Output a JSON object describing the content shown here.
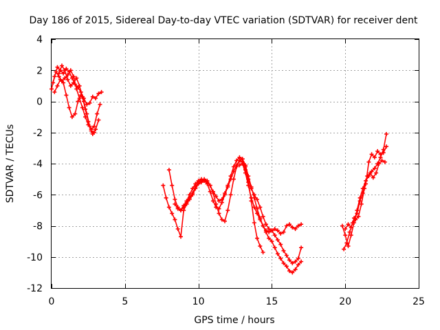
{
  "chart_data": {
    "type": "scatter",
    "title": "Day 186 of 2015, Sidereal Day-to-day VTEC variation (SDTVAR) for receiver dent",
    "xlabel": "GPS time / hours",
    "ylabel": "SDTVAR / TECUs",
    "xlim": [
      0,
      25
    ],
    "ylim": [
      -12,
      4
    ],
    "x_ticks": [
      0,
      5,
      10,
      15,
      20,
      25
    ],
    "y_ticks": [
      -12,
      -10,
      -8,
      -6,
      -4,
      -2,
      0,
      2,
      4
    ],
    "x_tick_labels": [
      "0",
      "5",
      "10",
      "15",
      "20",
      "25"
    ],
    "y_tick_labels": [
      "-12",
      "-10",
      "-8",
      "-6",
      "-4",
      "-2",
      "0",
      "2",
      "4"
    ],
    "grid": true,
    "marker": "plus",
    "color": "#ff0000",
    "series": [
      {
        "x": [
          0.0,
          0.2,
          0.4,
          0.6,
          0.8,
          1.0,
          1.2,
          1.4,
          1.6,
          1.8,
          2.0,
          2.2,
          2.4,
          2.6,
          2.8,
          3.0,
          3.2,
          3.4
        ],
        "y": [
          0.8,
          1.6,
          2.2,
          2.0,
          1.8,
          2.1,
          1.9,
          1.5,
          1.1,
          0.9,
          0.6,
          0.2,
          -0.2,
          -0.1,
          0.3,
          0.2,
          0.5,
          0.6
        ]
      },
      {
        "x": [
          0.1,
          0.3,
          0.5,
          0.7,
          0.9,
          1.1,
          1.3,
          1.5,
          1.7,
          1.9,
          2.1,
          2.3,
          2.5,
          2.7,
          2.9,
          3.1,
          3.3
        ],
        "y": [
          1.2,
          1.9,
          1.6,
          1.3,
          1.5,
          1.7,
          2.0,
          1.6,
          0.8,
          0.2,
          -0.4,
          -1.0,
          -1.5,
          -1.8,
          -1.6,
          -0.8,
          -0.2
        ]
      },
      {
        "x": [
          0.2,
          0.4,
          0.6,
          0.8,
          1.0,
          1.2,
          1.4,
          1.6,
          1.8,
          2.0,
          2.2,
          2.4,
          2.6,
          2.8,
          3.0,
          3.2
        ],
        "y": [
          0.6,
          1.0,
          1.4,
          1.2,
          0.4,
          -0.4,
          -1.0,
          -0.8,
          0.0,
          0.4,
          0.0,
          -0.8,
          -1.6,
          -2.1,
          -1.8,
          -1.2
        ]
      },
      {
        "x": [
          0.5,
          0.7,
          0.9,
          1.1,
          1.3,
          1.5,
          1.7,
          1.9,
          2.1,
          2.3,
          2.5,
          2.7,
          2.9
        ],
        "y": [
          1.8,
          2.3,
          2.0,
          1.4,
          1.0,
          1.2,
          1.5,
          1.0,
          0.3,
          -0.5,
          -1.3,
          -1.9,
          -2.0
        ]
      },
      {
        "x": [
          7.6,
          7.8,
          8.0,
          8.2,
          8.4,
          8.6,
          8.8,
          9.0,
          9.2,
          9.4,
          9.6,
          9.8,
          10.0,
          10.2,
          10.4,
          10.6,
          10.8,
          11.0,
          11.2,
          11.4,
          11.6,
          11.8,
          12.0,
          12.2,
          12.4,
          12.6,
          12.8,
          13.0,
          13.2,
          13.4,
          13.6,
          13.8,
          14.0,
          14.2,
          14.4
        ],
        "y": [
          -5.4,
          -6.2,
          -6.8,
          -7.2,
          -7.6,
          -8.2,
          -8.7,
          -7.0,
          -6.6,
          -6.3,
          -6.0,
          -5.6,
          -5.3,
          -5.2,
          -5.1,
          -5.2,
          -5.4,
          -5.9,
          -6.6,
          -7.2,
          -7.6,
          -7.7,
          -7.0,
          -6.0,
          -5.0,
          -4.2,
          -3.8,
          -3.7,
          -4.2,
          -5.2,
          -6.4,
          -7.8,
          -8.8,
          -9.3,
          -9.7
        ]
      },
      {
        "x": [
          8.0,
          8.2,
          8.4,
          8.6,
          8.8,
          9.0,
          9.2,
          9.4,
          9.6,
          9.8,
          10.0,
          10.2,
          10.4,
          10.6,
          10.8,
          11.0,
          11.2,
          11.4,
          11.6,
          11.8,
          12.0,
          12.2,
          12.4,
          12.6,
          12.8,
          13.0,
          13.2,
          13.4,
          13.6,
          13.8,
          14.0,
          14.2,
          14.4,
          14.6,
          14.8,
          15.0,
          15.2,
          15.4,
          15.6,
          15.8,
          16.0,
          16.2,
          16.4,
          16.6,
          16.8,
          17.0
        ],
        "y": [
          -4.4,
          -5.4,
          -6.3,
          -6.8,
          -7.0,
          -6.8,
          -6.5,
          -6.2,
          -5.9,
          -5.5,
          -5.2,
          -5.1,
          -5.0,
          -5.1,
          -5.4,
          -5.8,
          -6.1,
          -6.4,
          -6.3,
          -5.9,
          -5.4,
          -4.8,
          -4.2,
          -3.8,
          -3.6,
          -3.7,
          -4.1,
          -4.8,
          -5.5,
          -6.2,
          -6.9,
          -7.5,
          -8.0,
          -8.4,
          -8.8,
          -9.0,
          -9.4,
          -9.8,
          -10.1,
          -10.4,
          -10.6,
          -10.9,
          -11.0,
          -10.8,
          -10.5,
          -10.3
        ]
      },
      {
        "x": [
          8.4,
          8.6,
          8.8,
          9.0,
          9.2,
          9.4,
          9.6,
          9.8,
          10.0,
          10.2,
          10.4,
          10.6,
          10.8,
          11.0,
          11.2,
          11.4,
          11.6,
          11.8,
          12.0,
          12.2,
          12.4,
          12.6,
          12.8,
          13.0,
          13.2,
          13.4,
          13.6,
          13.8,
          14.0,
          14.2,
          14.4,
          14.6,
          14.8,
          15.0,
          15.2,
          15.4,
          15.6,
          15.8,
          16.0,
          16.2,
          16.4,
          16.6,
          16.8,
          17.0
        ],
        "y": [
          -6.6,
          -6.9,
          -7.0,
          -6.7,
          -6.4,
          -6.0,
          -5.6,
          -5.3,
          -5.1,
          -5.0,
          -5.1,
          -5.3,
          -5.8,
          -6.4,
          -6.8,
          -6.9,
          -6.5,
          -6.0,
          -5.5,
          -5.0,
          -4.5,
          -4.1,
          -3.8,
          -3.9,
          -4.4,
          -5.0,
          -5.6,
          -6.0,
          -6.3,
          -6.8,
          -7.4,
          -7.9,
          -8.2,
          -8.3,
          -8.6,
          -8.9,
          -9.2,
          -9.6,
          -9.9,
          -10.2,
          -10.4,
          -10.3,
          -10.1,
          -9.4
        ]
      },
      {
        "x": [
          12.8,
          13.0,
          13.2,
          13.4,
          13.6,
          13.8,
          14.0,
          14.2,
          14.4,
          14.6,
          14.8,
          15.0,
          15.2,
          15.4,
          15.6,
          15.8,
          16.0,
          16.2,
          16.4,
          16.6,
          16.8,
          17.0
        ],
        "y": [
          -4.1,
          -4.0,
          -4.6,
          -5.4,
          -6.2,
          -6.8,
          -7.2,
          -7.6,
          -8.0,
          -8.3,
          -8.4,
          -8.3,
          -8.2,
          -8.3,
          -8.5,
          -8.4,
          -8.0,
          -7.9,
          -8.1,
          -8.2,
          -8.0,
          -7.9
        ]
      },
      {
        "x": [
          19.8,
          20.0,
          20.2,
          20.4,
          20.6,
          20.8,
          21.0,
          21.2,
          21.4,
          21.6,
          21.8,
          22.0,
          22.2,
          22.4,
          22.6,
          22.8
        ],
        "y": [
          -8.0,
          -8.6,
          -9.3,
          -8.6,
          -7.8,
          -7.0,
          -6.2,
          -5.6,
          -5.1,
          -4.8,
          -4.5,
          -4.3,
          -4.0,
          -3.6,
          -3.1,
          -2.1
        ]
      },
      {
        "x": [
          19.9,
          20.1,
          20.3,
          20.5,
          20.7,
          20.9,
          21.1,
          21.3,
          21.5,
          21.7,
          21.9,
          22.1,
          22.3,
          22.5,
          22.7
        ],
        "y": [
          -9.5,
          -9.1,
          -8.4,
          -7.8,
          -7.6,
          -7.4,
          -6.6,
          -5.6,
          -4.8,
          -4.6,
          -4.9,
          -4.6,
          -4.0,
          -3.8,
          -3.9
        ]
      },
      {
        "x": [
          20.0,
          20.2,
          20.4,
          20.6,
          20.8,
          21.0,
          21.2,
          21.4,
          21.6,
          21.8,
          22.0,
          22.2,
          22.4,
          22.6,
          22.8
        ],
        "y": [
          -8.2,
          -7.9,
          -8.1,
          -7.5,
          -7.2,
          -6.4,
          -5.9,
          -5.3,
          -3.9,
          -3.4,
          -3.6,
          -3.2,
          -3.4,
          -3.3,
          -2.9
        ]
      }
    ]
  }
}
